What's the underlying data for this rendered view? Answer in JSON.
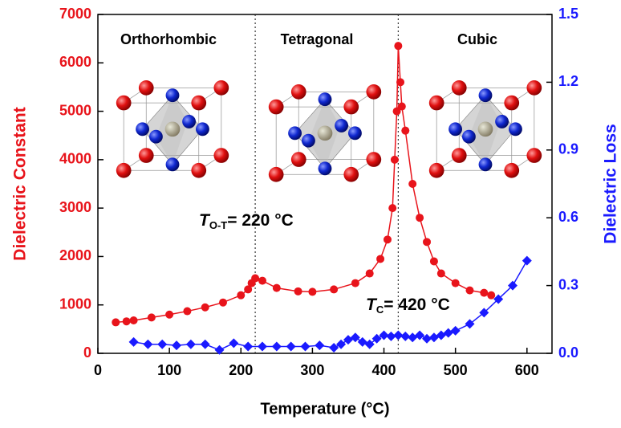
{
  "chart_data": {
    "type": "scatter",
    "xlabel": "Temperature (°C)",
    "ylabel": "Dielectric Constant",
    "y2label": "Dielectric Loss",
    "xlim": [
      0,
      635
    ],
    "xticks": [
      0,
      100,
      200,
      300,
      400,
      500,
      600
    ],
    "ylim": [
      0,
      7000
    ],
    "yticks": [
      0,
      1000,
      2000,
      3000,
      4000,
      5000,
      6000,
      7000
    ],
    "y2lim": [
      0,
      1.5
    ],
    "y2ticks": [
      {
        "value": 0,
        "label": "0.0"
      },
      0.3,
      0.6,
      0.9,
      1.2,
      1.5
    ],
    "phase_labels": [
      "Orthorhombic",
      "Tetragonal",
      "Cubic"
    ],
    "phase_boundaries": [
      220,
      420
    ],
    "annotations": [
      {
        "symbol": "T",
        "subscript": "O-T",
        "text": "= 220 °C"
      },
      {
        "symbol": "T",
        "subscript": "C",
        "text": "= 420 °C"
      }
    ],
    "series": [
      {
        "name": "Dielectric Constant",
        "color": "#e8141b",
        "marker": "circle",
        "x": [
          25,
          40,
          50,
          75,
          100,
          125,
          150,
          175,
          200,
          210,
          215,
          220,
          230,
          250,
          280,
          300,
          330,
          360,
          380,
          395,
          405,
          412,
          415,
          418,
          420,
          423,
          425,
          430,
          440,
          450,
          460,
          470,
          480,
          500,
          520,
          540,
          550
        ],
        "values": [
          640,
          660,
          680,
          740,
          800,
          870,
          950,
          1050,
          1200,
          1320,
          1450,
          1550,
          1500,
          1350,
          1280,
          1270,
          1320,
          1450,
          1650,
          1950,
          2350,
          3000,
          4000,
          5000,
          6350,
          5600,
          5100,
          4600,
          3500,
          2800,
          2300,
          1900,
          1650,
          1450,
          1300,
          1250,
          1200
        ]
      },
      {
        "name": "Dielectric Loss",
        "color": "#1a1aff",
        "marker": "diamond",
        "axis": "y2",
        "x": [
          50,
          70,
          90,
          110,
          130,
          150,
          170,
          190,
          210,
          230,
          250,
          270,
          290,
          310,
          330,
          340,
          350,
          360,
          370,
          380,
          390,
          400,
          410,
          420,
          430,
          440,
          450,
          460,
          470,
          480,
          490,
          500,
          520,
          540,
          560,
          580,
          600
        ],
        "values": [
          0.05,
          0.04,
          0.04,
          0.035,
          0.04,
          0.04,
          0.015,
          0.045,
          0.03,
          0.03,
          0.03,
          0.03,
          0.03,
          0.035,
          0.025,
          0.04,
          0.06,
          0.07,
          0.05,
          0.04,
          0.065,
          0.08,
          0.075,
          0.08,
          0.075,
          0.07,
          0.08,
          0.065,
          0.07,
          0.08,
          0.09,
          0.1,
          0.13,
          0.18,
          0.24,
          0.3,
          0.41
        ]
      }
    ]
  }
}
